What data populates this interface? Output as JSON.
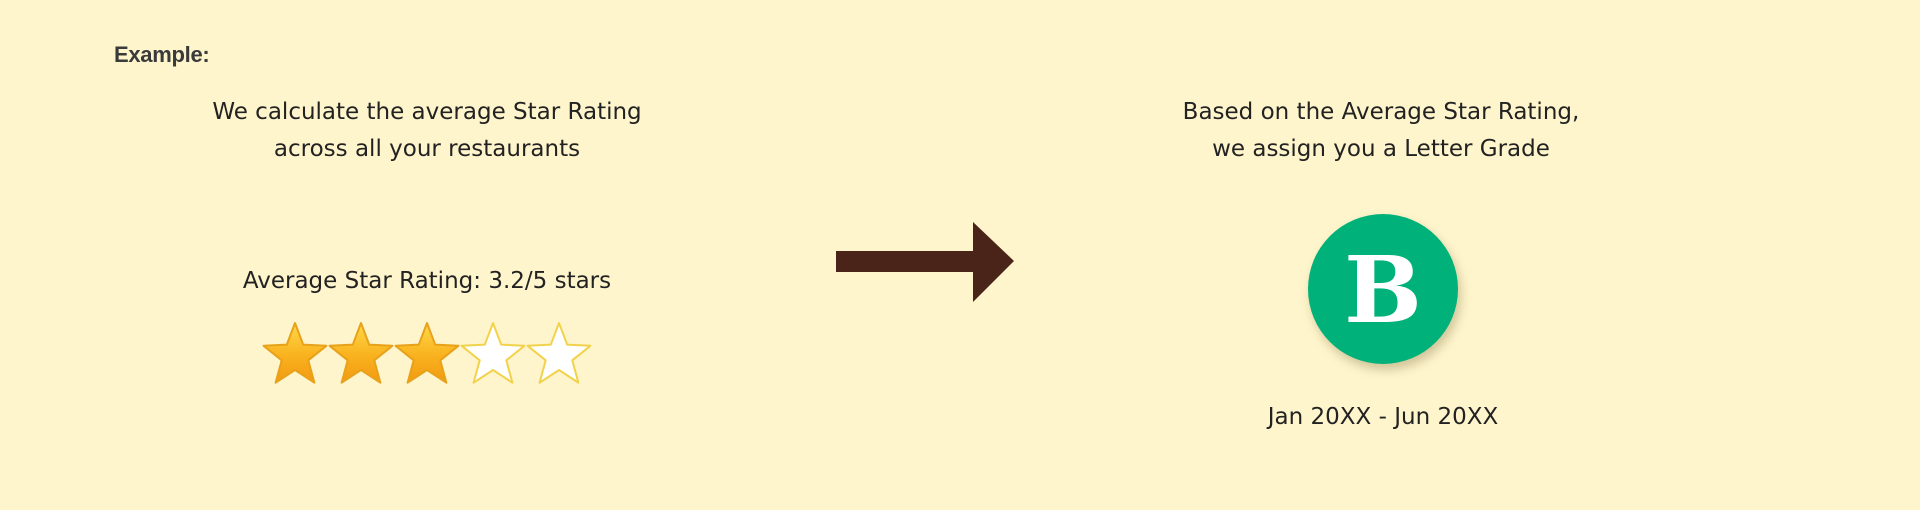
{
  "heading": "Example:",
  "left": {
    "description_line1": "We calculate the average Star Rating",
    "description_line2": "across all your restaurants",
    "rating_label": "Average Star Rating: 3.2/5 stars",
    "stars": {
      "total": 5,
      "filled": 3,
      "filled_color": "#F9B21E",
      "empty_color": "#FFFFFF",
      "outline_color": "#F2D24A"
    }
  },
  "right": {
    "description_line1": "Based on the Average Star Rating,",
    "description_line2": "we assign you a Letter Grade",
    "grade": "B",
    "grade_color": "#00B27A",
    "period": "Jan 20XX - Jun 20XX"
  },
  "arrow": {
    "icon": "right-arrow-icon",
    "color": "#4A2418"
  },
  "background_color": "#FFF5CC"
}
